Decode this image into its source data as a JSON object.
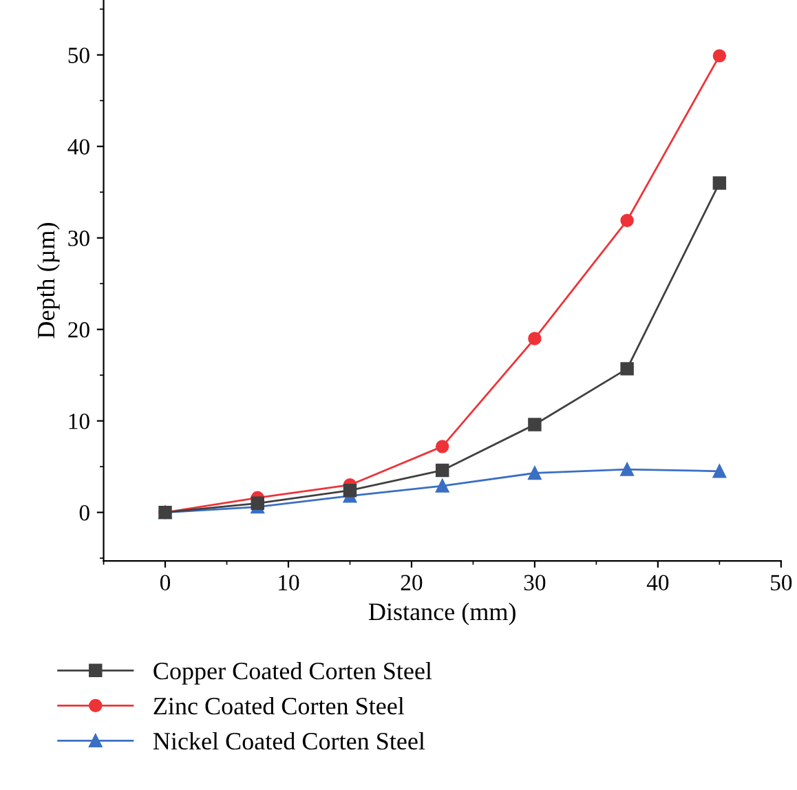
{
  "chart_data": {
    "type": "line",
    "xlabel": "Distance (mm)",
    "ylabel": "Depth (µm)",
    "x": [
      0,
      7.5,
      15,
      22.5,
      30,
      37.5,
      45
    ],
    "series": [
      {
        "name": "Copper Coated Corten Steel",
        "color": "#404040",
        "marker": "square",
        "values": [
          0,
          1.0,
          2.4,
          4.6,
          9.6,
          15.7,
          36.0
        ]
      },
      {
        "name": "Zinc Coated Corten Steel",
        "color": "#ee3338",
        "marker": "circle",
        "values": [
          0,
          1.6,
          3.0,
          7.2,
          19.0,
          31.9,
          49.9
        ]
      },
      {
        "name": "Nickel Coated Corten Steel",
        "color": "#3a6fc4",
        "marker": "triangle",
        "values": [
          0,
          0.6,
          1.8,
          2.9,
          4.3,
          4.7,
          4.5
        ]
      }
    ],
    "xlim": [
      -5,
      50
    ],
    "xticks": [
      0,
      10,
      20,
      30,
      40,
      50
    ],
    "ylim": [
      -5.3,
      56
    ],
    "yticks": [
      0,
      10,
      20,
      30,
      40,
      50
    ],
    "grid": false,
    "legend": "bottom",
    "line_style": "solid"
  }
}
